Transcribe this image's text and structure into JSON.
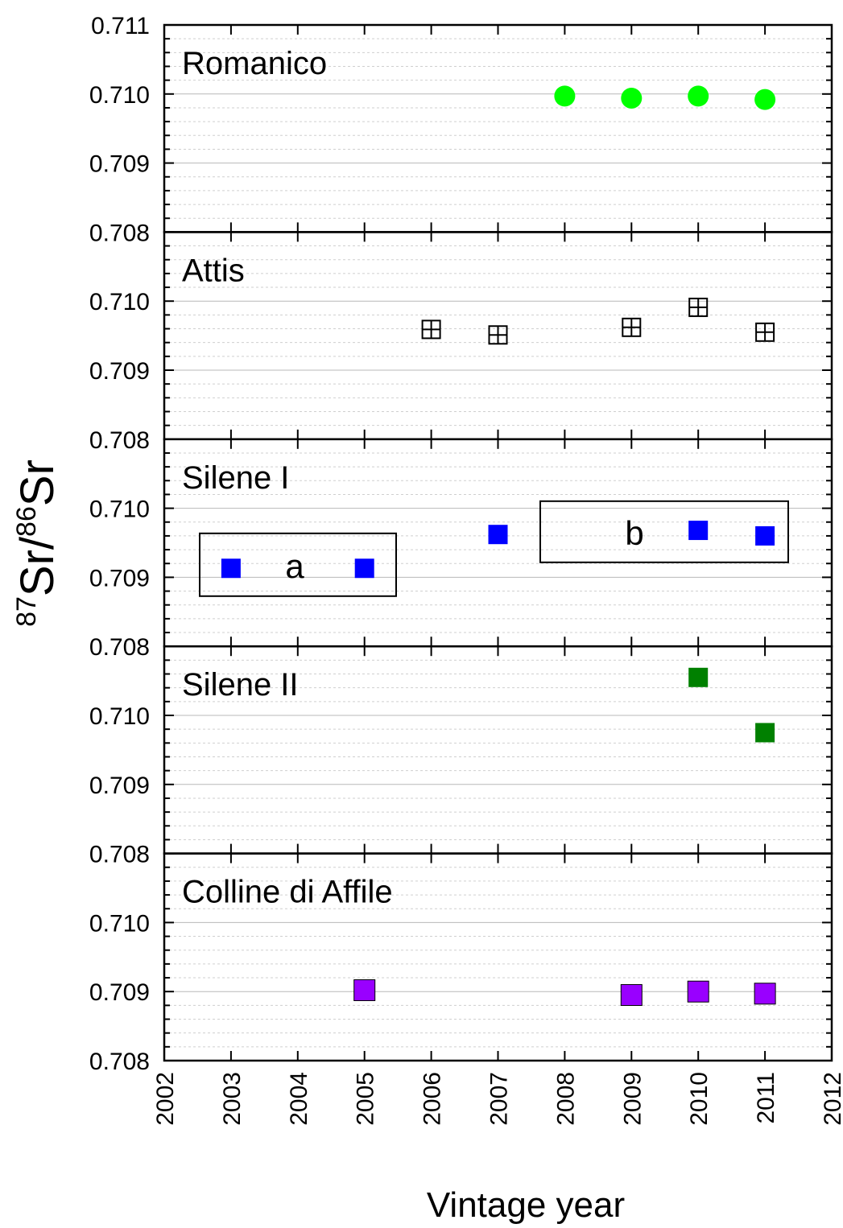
{
  "chart_data": {
    "type": "scatter",
    "xlabel": "Vintage year",
    "ylabel": {
      "sup1": "87",
      "base1": "Sr/",
      "sup2": "86",
      "base2": "Sr"
    },
    "xlim": [
      2002,
      2012
    ],
    "x_ticks": [
      "2002",
      "2003",
      "2004",
      "2005",
      "2006",
      "2007",
      "2008",
      "2009",
      "2010",
      "2011",
      "2012"
    ],
    "ylim": [
      0.708,
      0.711
    ],
    "y_tick_values": [
      0.708,
      0.709,
      0.71,
      0.711
    ],
    "grid": "horizontal dashed",
    "panels": [
      {
        "name": "Romanico",
        "marker": "circle",
        "color": "#00ff00",
        "y_ticks": [
          "0.711",
          "0.710",
          "0.709",
          "0.708"
        ],
        "points": [
          [
            2008,
            0.70997
          ],
          [
            2009,
            0.70994
          ],
          [
            2010,
            0.70997
          ],
          [
            2011,
            0.70992
          ]
        ]
      },
      {
        "name": "Attis",
        "marker": "square-cross-open",
        "color": "#000000",
        "y_ticks": [
          "",
          "0.710",
          "0.709",
          "0.708"
        ],
        "points": [
          [
            2006,
            0.70959
          ],
          [
            2007,
            0.70951
          ],
          [
            2009,
            0.70962
          ],
          [
            2010,
            0.70991
          ],
          [
            2011,
            0.70955
          ]
        ]
      },
      {
        "name": "Silene I",
        "marker": "square",
        "color": "#0000ff",
        "y_ticks": [
          "",
          "0.710",
          "0.709",
          "0.708"
        ],
        "points": [
          [
            2003,
            0.70913
          ],
          [
            2005,
            0.70913
          ],
          [
            2007,
            0.70962
          ],
          [
            2010,
            0.70968
          ],
          [
            2011,
            0.7096
          ]
        ],
        "groups": [
          {
            "label": "a",
            "corner": "lower-left"
          },
          {
            "label": "b",
            "corner": "upper-right"
          }
        ]
      },
      {
        "name": "Silene II",
        "marker": "square",
        "color": "#008000",
        "y_ticks": [
          "",
          "0.710",
          "0.709",
          "0.708"
        ],
        "points": [
          [
            2010,
            0.71055
          ],
          [
            2011,
            0.70975
          ]
        ]
      },
      {
        "name": "Colline di Affile",
        "marker": "square",
        "color": "#9900ff",
        "y_ticks": [
          "",
          "0.710",
          "0.709",
          "0.708"
        ],
        "points": [
          [
            2005,
            0.70902
          ],
          [
            2009,
            0.70895
          ],
          [
            2010,
            0.709
          ],
          [
            2011,
            0.70897
          ]
        ]
      }
    ]
  }
}
